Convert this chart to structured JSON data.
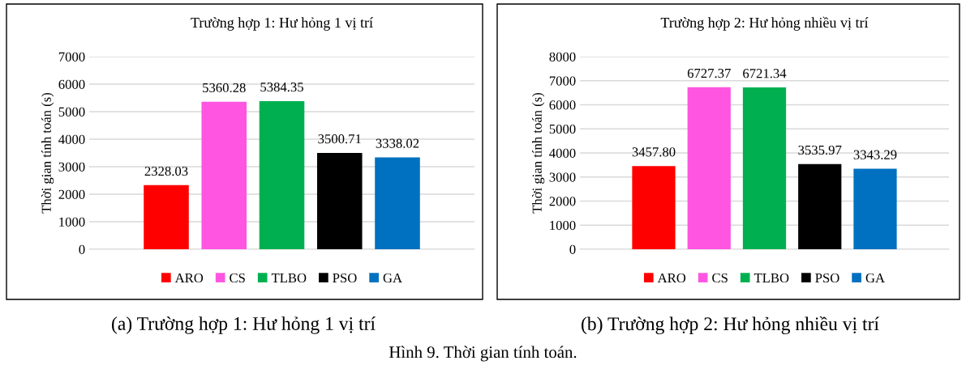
{
  "chart_data": [
    {
      "type": "bar",
      "title": "Trường hợp 1: Hư hỏng 1 vị trí",
      "ylabel": "Thời gian tính toán (s)",
      "categories": [
        null
      ],
      "series": [
        {
          "name": "ARO",
          "color": "#ff0000",
          "values": [
            2328.03
          ],
          "value_labels": [
            "2328.03"
          ]
        },
        {
          "name": "CS",
          "color": "#ff55e0",
          "values": [
            5360.28
          ],
          "value_labels": [
            "5360.28"
          ]
        },
        {
          "name": "TLBO",
          "color": "#00b050",
          "values": [
            5384.35
          ],
          "value_labels": [
            "5384.35"
          ]
        },
        {
          "name": "PSO",
          "color": "#000000",
          "values": [
            3500.71
          ],
          "value_labels": [
            "3500.71"
          ]
        },
        {
          "name": "GA",
          "color": "#0070c0",
          "values": [
            3338.02
          ],
          "value_labels": [
            "3338.02"
          ]
        }
      ],
      "ylim": [
        0,
        7000
      ],
      "yticks": [
        0,
        1000,
        2000,
        3000,
        4000,
        5000,
        6000,
        7000
      ],
      "grid": "y",
      "legend": "bottom",
      "annotations": [
        "(a) Trường hợp 1: Hư hỏng 1 vị trí",
        "Hình 9. Thời gian tính toán."
      ]
    },
    {
      "type": "bar",
      "title": "Trường hợp 2: Hư hỏng nhiều vị trí",
      "ylabel": "Thời gian tính toán (s)",
      "categories": [
        null
      ],
      "series": [
        {
          "name": "ARO",
          "color": "#ff0000",
          "values": [
            3457.8
          ],
          "value_labels": [
            "3457.80"
          ]
        },
        {
          "name": "CS",
          "color": "#ff55e0",
          "values": [
            6727.37
          ],
          "value_labels": [
            "6727.37"
          ]
        },
        {
          "name": "TLBO",
          "color": "#00b050",
          "values": [
            6721.34
          ],
          "value_labels": [
            "6721.34"
          ]
        },
        {
          "name": "PSO",
          "color": "#000000",
          "values": [
            3535.97
          ],
          "value_labels": [
            "3535.97"
          ]
        },
        {
          "name": "GA",
          "color": "#0070c0",
          "values": [
            3343.29
          ],
          "value_labels": [
            "3343.29"
          ]
        }
      ],
      "ylim": [
        0,
        8000
      ],
      "yticks": [
        0,
        1000,
        2000,
        3000,
        4000,
        5000,
        6000,
        7000,
        8000
      ],
      "grid": "y",
      "legend": "bottom",
      "annotations": [
        "(b) Trường hợp 2: Hư hỏng nhiều vị trí"
      ]
    }
  ]
}
